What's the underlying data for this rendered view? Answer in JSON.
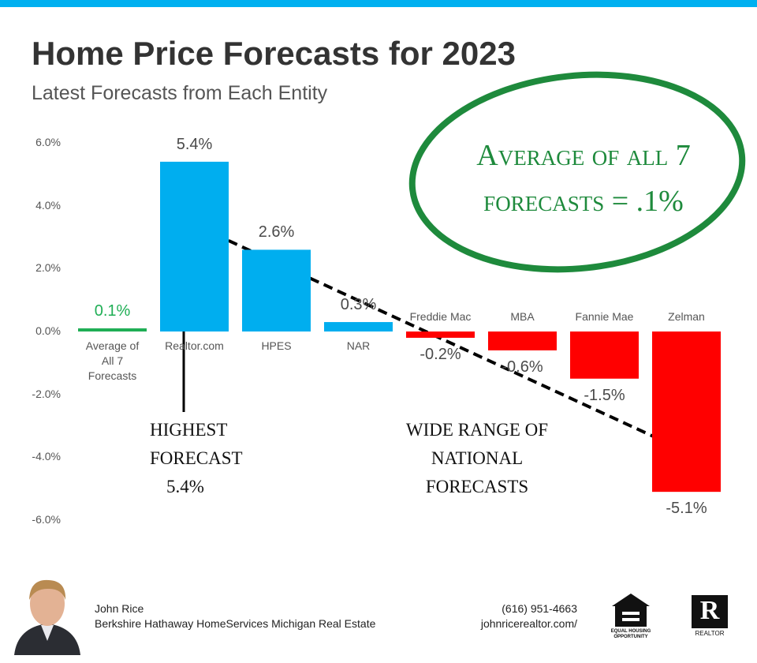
{
  "chart_data": {
    "type": "bar",
    "title": "Home Price Forecasts for 2023",
    "subtitle": "Latest Forecasts from Each Entity",
    "categories": [
      "Average of All 7 Forecasts",
      "Realtor.com",
      "HPES",
      "NAR",
      "Freddie Mac",
      "MBA",
      "Fannie Mae",
      "Zelman"
    ],
    "values": [
      0.1,
      5.4,
      2.6,
      0.3,
      -0.2,
      -0.6,
      -1.5,
      -5.1
    ],
    "value_labels": [
      "0.1%",
      "5.4%",
      "2.6%",
      "0.3%",
      "-0.2%",
      "-0.6%",
      "-1.5%",
      "-5.1%"
    ],
    "colors": [
      "#1fae55",
      "#00aeef",
      "#00aeef",
      "#00aeef",
      "#ff0000",
      "#ff0000",
      "#ff0000",
      "#ff0000"
    ],
    "ylim": [
      -6,
      6
    ],
    "yticks": [
      {
        "value": 6,
        "label": "6.0%"
      },
      {
        "value": 4,
        "label": "4.0%"
      },
      {
        "value": 2,
        "label": "2.0%"
      },
      {
        "value": 0,
        "label": "0.0%"
      },
      {
        "value": -2,
        "label": "-2.0%"
      },
      {
        "value": -4,
        "label": "-4.0%"
      },
      {
        "value": -6,
        "label": "-6.0%"
      }
    ],
    "annotations": [
      "Average of all 7 forecasts = .1%",
      "HIGHEST FORECAST 5.4%",
      "WIDE RANGE OF NATIONAL FORECASTS"
    ]
  },
  "footer": {
    "name": "John Rice",
    "company": "Berkshire Hathaway HomeServices Michigan Real Estate",
    "phone": "(616) 951-4663",
    "website": "johnricerealtor.com/",
    "logo_equal_housing": "EQUAL HOUSING OPPORTUNITY",
    "logo_realtor": "REALTOR"
  }
}
